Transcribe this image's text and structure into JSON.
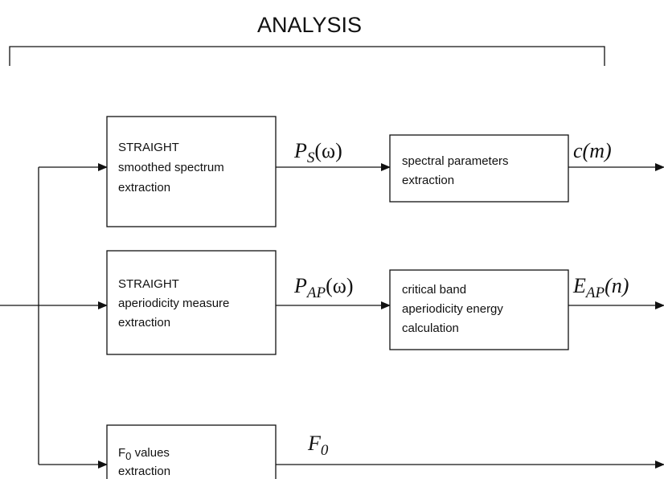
{
  "title": "ANALYSIS",
  "nodes": [
    {
      "lines": [
        "STRAIGHT",
        "smoothed spectrum",
        "extraction"
      ]
    },
    {
      "lines": [
        "spectral parameters",
        "extraction"
      ]
    },
    {
      "lines": [
        "STRAIGHT",
        "aperiodicity measure",
        "extraction"
      ]
    },
    {
      "lines": [
        "critical band",
        "aperiodicity energy",
        "calculation"
      ]
    },
    {
      "symbol": "F",
      "sub": "0",
      "lines": [
        " values",
        "extraction"
      ]
    }
  ],
  "edges": [
    {
      "symbol": "P",
      "sub": "S",
      "rest": "(ω)"
    },
    {
      "symbol": "c(m)"
    },
    {
      "symbol": "P",
      "sub": "AP",
      "rest": "(ω)"
    },
    {
      "symbol": "E",
      "sub": "AP",
      "rest": "(n)"
    },
    {
      "symbol": "F",
      "sub": "0"
    }
  ]
}
